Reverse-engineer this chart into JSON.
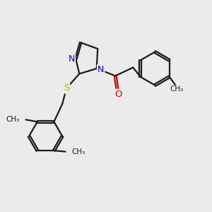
{
  "background_color": "#ebebeb",
  "bond_color": "#1a1a1a",
  "N_color": "#0000cc",
  "O_color": "#cc0000",
  "S_color": "#b8b800",
  "line_width": 1.6,
  "dbo": 0.04,
  "figsize": [
    3.0,
    3.0
  ],
  "dpi": 100,
  "xlim": [
    0,
    10
  ],
  "ylim": [
    0,
    10
  ]
}
